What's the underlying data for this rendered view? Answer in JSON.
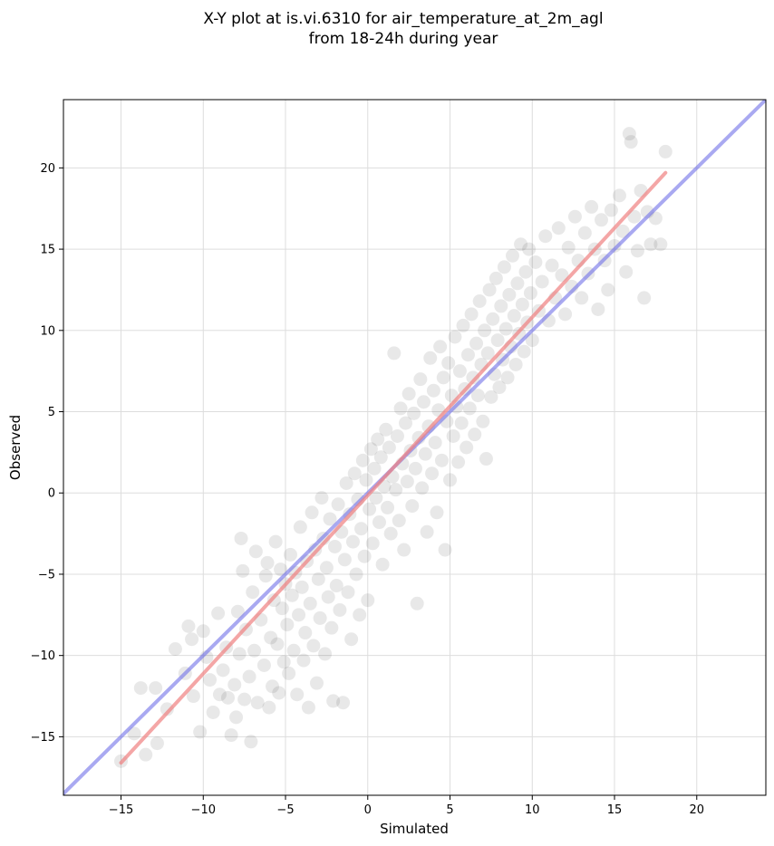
{
  "chart_data": {
    "type": "scatter",
    "title": [
      "X-Y plot at is.vi.6310 for air_temperature_at_2m_agl",
      "from 18-24h during year"
    ],
    "xlabel": "Simulated",
    "ylabel": "Observed",
    "xlim": [
      -18.5,
      24.2
    ],
    "ylim": [
      -18.6,
      24.2
    ],
    "grid": true,
    "xticks": [
      -15,
      -10,
      -5,
      0,
      5,
      10,
      15,
      20
    ],
    "yticks": [
      -15,
      -10,
      -5,
      0,
      5,
      10,
      15,
      20
    ],
    "xtick_labels": [
      "−15",
      "−10",
      "−5",
      "0",
      "5",
      "10",
      "15",
      "20"
    ],
    "ytick_labels": [
      "−15",
      "−10",
      "−5",
      "0",
      "5",
      "10",
      "15",
      "20"
    ],
    "colors": {
      "points": "#000000",
      "regression_line": "#f08080",
      "identity_line": "#7070e8",
      "grid": "#dddddd"
    },
    "identity_line": {
      "x": [
        -18.5,
        24.2
      ],
      "y": [
        -18.5,
        24.2
      ]
    },
    "regression_line": {
      "x": [
        -15.0,
        18.1
      ],
      "y": [
        -16.6,
        19.7
      ]
    },
    "series": [
      {
        "points": [
          [
            -15.0,
            -16.5
          ],
          [
            -14.2,
            -14.8
          ],
          [
            -13.8,
            -12.0
          ],
          [
            -13.5,
            -16.1
          ],
          [
            -12.8,
            -15.4
          ],
          [
            -12.9,
            -12.0
          ],
          [
            -12.2,
            -13.3
          ],
          [
            -11.7,
            -9.6
          ],
          [
            -11.1,
            -11.1
          ],
          [
            -10.9,
            -8.2
          ],
          [
            -10.7,
            -9.0
          ],
          [
            -10.6,
            -12.5
          ],
          [
            -10.2,
            -14.7
          ],
          [
            -10.0,
            -8.5
          ],
          [
            -9.8,
            -10.1
          ],
          [
            -9.6,
            -11.5
          ],
          [
            -9.4,
            -13.5
          ],
          [
            -9.1,
            -7.4
          ],
          [
            -9.0,
            -12.4
          ],
          [
            -8.8,
            -10.9
          ],
          [
            -8.6,
            -9.5
          ],
          [
            -8.5,
            -12.6
          ],
          [
            -8.3,
            -14.9
          ],
          [
            -8.1,
            -11.8
          ],
          [
            -8.0,
            -13.8
          ],
          [
            -7.9,
            -7.3
          ],
          [
            -7.8,
            -9.9
          ],
          [
            -7.7,
            -2.8
          ],
          [
            -7.6,
            -4.8
          ],
          [
            -7.5,
            -12.7
          ],
          [
            -7.4,
            -8.4
          ],
          [
            -7.2,
            -11.3
          ],
          [
            -7.1,
            -15.3
          ],
          [
            -7.0,
            -6.1
          ],
          [
            -6.9,
            -9.7
          ],
          [
            -6.8,
            -3.6
          ],
          [
            -6.7,
            -12.9
          ],
          [
            -6.5,
            -7.8
          ],
          [
            -6.3,
            -10.6
          ],
          [
            -6.2,
            -5.1
          ],
          [
            -6.1,
            -4.3
          ],
          [
            -6.0,
            -13.2
          ],
          [
            -5.9,
            -8.9
          ],
          [
            -5.8,
            -11.9
          ],
          [
            -5.7,
            -6.6
          ],
          [
            -5.6,
            -3.0
          ],
          [
            -5.5,
            -9.3
          ],
          [
            -5.4,
            -12.3
          ],
          [
            -5.3,
            -4.7
          ],
          [
            -5.2,
            -7.1
          ],
          [
            -5.1,
            -10.4
          ],
          [
            -5.0,
            -5.6
          ],
          [
            -4.9,
            -8.1
          ],
          [
            -4.8,
            -11.1
          ],
          [
            -4.7,
            -3.8
          ],
          [
            -4.6,
            -6.3
          ],
          [
            -4.5,
            -9.7
          ],
          [
            -4.4,
            -4.9
          ],
          [
            -4.3,
            -12.4
          ],
          [
            -4.2,
            -7.5
          ],
          [
            -4.1,
            -2.1
          ],
          [
            -4.0,
            -5.8
          ],
          [
            -3.9,
            -10.3
          ],
          [
            -3.8,
            -8.6
          ],
          [
            -3.7,
            -4.2
          ],
          [
            -3.6,
            -13.2
          ],
          [
            -3.5,
            -6.8
          ],
          [
            -3.4,
            -1.2
          ],
          [
            -3.3,
            -9.4
          ],
          [
            -3.2,
            -3.5
          ],
          [
            -3.1,
            -11.7
          ],
          [
            -3.0,
            -5.3
          ],
          [
            -2.9,
            -7.7
          ],
          [
            -2.8,
            -0.3
          ],
          [
            -2.7,
            -2.8
          ],
          [
            -2.6,
            -9.9
          ],
          [
            -2.5,
            -4.6
          ],
          [
            -2.4,
            -6.4
          ],
          [
            -2.3,
            -1.6
          ],
          [
            -2.2,
            -8.3
          ],
          [
            -2.1,
            -12.8
          ],
          [
            -2.0,
            -3.3
          ],
          [
            -1.9,
            -5.7
          ],
          [
            -1.8,
            -0.7
          ],
          [
            -1.7,
            -7.2
          ],
          [
            -1.6,
            -2.4
          ],
          [
            -1.5,
            -12.9
          ],
          [
            -1.4,
            -4.1
          ],
          [
            -1.3,
            0.6
          ],
          [
            -1.2,
            -6.1
          ],
          [
            -1.1,
            -1.3
          ],
          [
            -1.0,
            -9.0
          ],
          [
            -0.9,
            -3.0
          ],
          [
            -0.8,
            1.2
          ],
          [
            -0.7,
            -5.0
          ],
          [
            -0.6,
            -0.4
          ],
          [
            -0.5,
            -7.5
          ],
          [
            -0.4,
            -2.2
          ],
          [
            -0.3,
            2.0
          ],
          [
            -0.2,
            -3.9
          ],
          [
            -0.1,
            0.8
          ],
          [
            0.0,
            -6.6
          ],
          [
            0.1,
            -1.0
          ],
          [
            0.2,
            2.7
          ],
          [
            0.3,
            -3.1
          ],
          [
            0.4,
            1.5
          ],
          [
            0.5,
            -0.3
          ],
          [
            0.6,
            3.3
          ],
          [
            0.7,
            -1.8
          ],
          [
            0.8,
            2.2
          ],
          [
            0.9,
            -4.4
          ],
          [
            1.0,
            0.4
          ],
          [
            1.1,
            3.9
          ],
          [
            1.2,
            -0.9
          ],
          [
            1.3,
            2.8
          ],
          [
            1.4,
            -2.5
          ],
          [
            1.5,
            1.0
          ],
          [
            1.6,
            8.6
          ],
          [
            1.7,
            0.2
          ],
          [
            1.8,
            3.5
          ],
          [
            1.9,
            -1.7
          ],
          [
            2.0,
            5.2
          ],
          [
            2.1,
            1.8
          ],
          [
            2.2,
            -3.5
          ],
          [
            2.3,
            4.3
          ],
          [
            2.4,
            0.7
          ],
          [
            2.5,
            6.1
          ],
          [
            2.6,
            2.6
          ],
          [
            2.7,
            -0.8
          ],
          [
            2.8,
            4.9
          ],
          [
            2.9,
            1.5
          ],
          [
            3.0,
            -6.8
          ],
          [
            3.1,
            3.4
          ],
          [
            3.2,
            7.0
          ],
          [
            3.3,
            0.3
          ],
          [
            3.4,
            5.6
          ],
          [
            3.5,
            2.4
          ],
          [
            3.6,
            -2.4
          ],
          [
            3.7,
            4.1
          ],
          [
            3.8,
            8.3
          ],
          [
            3.9,
            1.2
          ],
          [
            4.0,
            6.3
          ],
          [
            4.1,
            3.1
          ],
          [
            4.2,
            -1.2
          ],
          [
            4.3,
            5.1
          ],
          [
            4.4,
            9.0
          ],
          [
            4.5,
            2.0
          ],
          [
            4.6,
            7.1
          ],
          [
            4.7,
            -3.5
          ],
          [
            4.8,
            4.4
          ],
          [
            4.9,
            8.0
          ],
          [
            5.0,
            0.8
          ],
          [
            5.1,
            6.0
          ],
          [
            5.2,
            3.5
          ],
          [
            5.3,
            9.6
          ],
          [
            5.4,
            5.3
          ],
          [
            5.5,
            1.9
          ],
          [
            5.6,
            7.5
          ],
          [
            5.7,
            4.3
          ],
          [
            5.8,
            10.3
          ],
          [
            5.9,
            6.4
          ],
          [
            6.0,
            2.8
          ],
          [
            6.1,
            8.5
          ],
          [
            6.2,
            5.2
          ],
          [
            6.3,
            11.0
          ],
          [
            6.4,
            7.1
          ],
          [
            6.5,
            3.6
          ],
          [
            6.6,
            9.2
          ],
          [
            6.7,
            6.0
          ],
          [
            6.8,
            11.8
          ],
          [
            6.9,
            7.9
          ],
          [
            7.0,
            4.4
          ],
          [
            7.1,
            10.0
          ],
          [
            7.2,
            2.1
          ],
          [
            7.3,
            8.6
          ],
          [
            7.4,
            12.5
          ],
          [
            7.5,
            5.9
          ],
          [
            7.6,
            10.7
          ],
          [
            7.7,
            7.3
          ],
          [
            7.8,
            13.2
          ],
          [
            7.9,
            9.4
          ],
          [
            8.0,
            6.5
          ],
          [
            8.1,
            11.5
          ],
          [
            8.2,
            8.2
          ],
          [
            8.3,
            13.9
          ],
          [
            8.4,
            10.1
          ],
          [
            8.5,
            7.1
          ],
          [
            8.6,
            12.2
          ],
          [
            8.7,
            9.0
          ],
          [
            8.8,
            14.6
          ],
          [
            8.9,
            10.9
          ],
          [
            9.0,
            7.9
          ],
          [
            9.1,
            12.9
          ],
          [
            9.2,
            9.8
          ],
          [
            9.3,
            15.3
          ],
          [
            9.4,
            11.6
          ],
          [
            9.5,
            8.7
          ],
          [
            9.6,
            13.6
          ],
          [
            9.7,
            10.5
          ],
          [
            9.8,
            15.0
          ],
          [
            9.9,
            12.3
          ],
          [
            10.0,
            9.4
          ],
          [
            10.2,
            14.2
          ],
          [
            10.4,
            11.2
          ],
          [
            10.6,
            13.0
          ],
          [
            10.8,
            15.8
          ],
          [
            11.0,
            10.6
          ],
          [
            11.2,
            14.0
          ],
          [
            11.4,
            12.0
          ],
          [
            11.6,
            16.3
          ],
          [
            11.8,
            13.4
          ],
          [
            12.0,
            11.0
          ],
          [
            12.2,
            15.1
          ],
          [
            12.4,
            12.7
          ],
          [
            12.6,
            17.0
          ],
          [
            12.8,
            14.3
          ],
          [
            13.0,
            12.0
          ],
          [
            13.2,
            16.0
          ],
          [
            13.4,
            13.5
          ],
          [
            13.6,
            17.6
          ],
          [
            13.8,
            15.0
          ],
          [
            14.0,
            11.3
          ],
          [
            14.2,
            16.8
          ],
          [
            14.4,
            14.3
          ],
          [
            14.6,
            12.5
          ],
          [
            14.8,
            17.4
          ],
          [
            15.0,
            15.2
          ],
          [
            15.3,
            18.3
          ],
          [
            15.5,
            16.1
          ],
          [
            15.7,
            13.6
          ],
          [
            15.9,
            22.1
          ],
          [
            16.0,
            21.6
          ],
          [
            16.2,
            17.0
          ],
          [
            16.4,
            14.9
          ],
          [
            16.6,
            18.6
          ],
          [
            16.8,
            12.0
          ],
          [
            17.0,
            17.3
          ],
          [
            17.2,
            15.3
          ],
          [
            17.5,
            16.9
          ],
          [
            17.8,
            15.3
          ],
          [
            18.1,
            21.0
          ]
        ]
      }
    ]
  }
}
